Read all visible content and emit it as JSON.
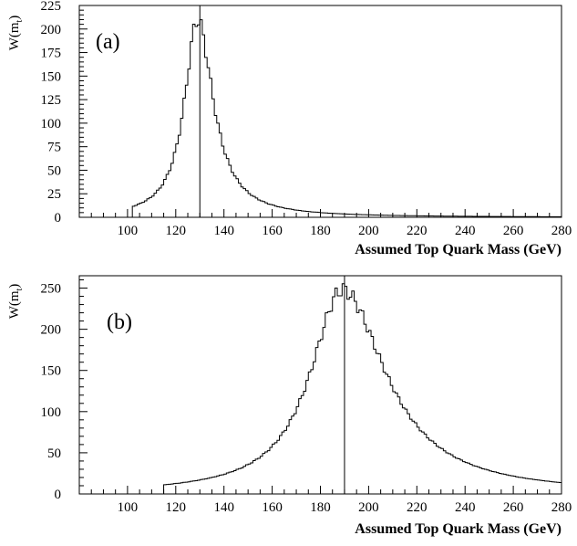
{
  "chart_data": [
    {
      "type": "histogram",
      "panel_label": "(a)",
      "ylabel": "W(m",
      "ylabel_sub": "t",
      "ylabel_close": ")",
      "xlabel": "Assumed Top Quark Mass (GeV)",
      "xlim": [
        80,
        280
      ],
      "ylim": [
        0,
        225
      ],
      "xticks": [
        "100",
        "120",
        "140",
        "160",
        "180",
        "200",
        "220",
        "240",
        "260",
        "280"
      ],
      "yticks": [
        "0",
        "25",
        "50",
        "75",
        "100",
        "125",
        "150",
        "175",
        "200",
        "225"
      ],
      "vertical_line_x": 130,
      "peak_x": 129,
      "peak_y": 210,
      "start_x": 102,
      "end_x": 280,
      "end_y": 0.5,
      "sigma_left": 6.5,
      "sigma_right": 8.0
    },
    {
      "type": "histogram",
      "panel_label": "(b)",
      "ylabel": "W(m",
      "ylabel_sub": "t",
      "ylabel_close": ")",
      "xlabel": "Assumed Top Quark Mass (GeV)",
      "xlim": [
        80,
        280
      ],
      "ylim": [
        0,
        265
      ],
      "xticks": [
        "100",
        "120",
        "140",
        "160",
        "180",
        "200",
        "220",
        "240",
        "260",
        "280"
      ],
      "yticks": [
        "0",
        "50",
        "100",
        "150",
        "200",
        "250"
      ],
      "vertical_line_x": 190,
      "peak_x": 189,
      "peak_y": 248,
      "start_x": 115,
      "end_x": 280,
      "end_y": 11,
      "sigma_left": 16,
      "sigma_right": 22
    }
  ]
}
